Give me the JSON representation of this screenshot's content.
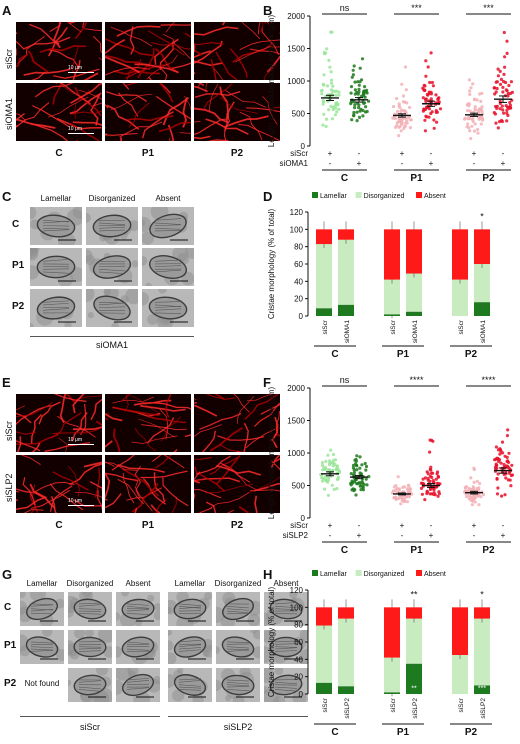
{
  "panels": {
    "A": {
      "label": "A",
      "rows": [
        "siScr",
        "siOMA1"
      ],
      "cols": [
        "C",
        "P1",
        "P2"
      ],
      "scalebar": "10 μm"
    },
    "B": {
      "label": "B"
    },
    "C": {
      "label": "C",
      "headers": [
        "Lamellar",
        "Disorganized",
        "Absent"
      ],
      "rows": [
        "C",
        "P1",
        "P2"
      ],
      "footer": "siOMA1"
    },
    "D": {
      "label": "D"
    },
    "E": {
      "label": "E",
      "rows": [
        "siScr",
        "siSLP2"
      ],
      "cols": [
        "C",
        "P1",
        "P2"
      ],
      "scalebar": "10 μm"
    },
    "F": {
      "label": "F"
    },
    "G": {
      "label": "G",
      "headers": [
        "Lamellar",
        "Disorganized",
        "Absent"
      ],
      "rows": [
        "C",
        "P1",
        "P2"
      ],
      "not_found": "Not found",
      "footers": [
        "siScr",
        "siSLP2"
      ]
    },
    "H": {
      "label": "H"
    }
  },
  "colors": {
    "scr": "#9ae59a",
    "scr_patient": "#f2b2b6",
    "kd_ctrl": "#1c7a1c",
    "kd_patient": "#e8102a",
    "lamellar": "#1e7a1e",
    "disorganized": "#c8ecc0",
    "absent": "#ff1a1a"
  },
  "chart_data": [
    {
      "id": "B",
      "type": "scatter",
      "ylabel": "Length of mitochondrial network (μm)",
      "ylim": [
        0,
        2000
      ],
      "yticks": [
        0,
        500,
        1000,
        1500,
        2000
      ],
      "row_labels": [
        "siScr",
        "siOMA1"
      ],
      "signs": [
        [
          "+",
          "-"
        ],
        [
          "-",
          "+"
        ],
        [
          "+",
          "-"
        ],
        [
          "-",
          "+"
        ],
        [
          "+",
          "-"
        ],
        [
          "-",
          "+"
        ]
      ],
      "groups": [
        "C",
        "P1",
        "P2"
      ],
      "significance": [
        "ns",
        "***",
        "***"
      ],
      "series": [
        {
          "name": "C siScr",
          "mean": 740,
          "sem": 40,
          "spread": [
            300,
            1900
          ]
        },
        {
          "name": "C siOMA1",
          "mean": 710,
          "sem": 35,
          "spread": [
            300,
            1550
          ]
        },
        {
          "name": "P1 siScr",
          "mean": 470,
          "sem": 25,
          "spread": [
            150,
            1400
          ]
        },
        {
          "name": "P1 siOMA1",
          "mean": 650,
          "sem": 40,
          "spread": [
            200,
            1750
          ]
        },
        {
          "name": "P2 siScr",
          "mean": 480,
          "sem": 25,
          "spread": [
            100,
            1650
          ]
        },
        {
          "name": "P2 siOMA1",
          "mean": 720,
          "sem": 50,
          "spread": [
            150,
            1850
          ]
        }
      ]
    },
    {
      "id": "D",
      "type": "bar",
      "stacked": true,
      "ylabel": "Cristae morphology (% of total)",
      "ylim": [
        0,
        120
      ],
      "yticks": [
        0,
        20,
        40,
        60,
        80,
        100,
        120
      ],
      "legend": [
        "Lamellar",
        "Disorganized",
        "Absent"
      ],
      "categories": [
        "siScr",
        "siOMA1",
        "siScr",
        "siOMA1",
        "siScr",
        "siOMA1"
      ],
      "groups": [
        "C",
        "P1",
        "P2"
      ],
      "series": [
        {
          "name": "Lamellar",
          "values": [
            9,
            13,
            2,
            5,
            0,
            16
          ]
        },
        {
          "name": "Disorganized",
          "values": [
            74,
            75,
            40,
            44,
            42,
            44
          ]
        },
        {
          "name": "Absent",
          "values": [
            17,
            12,
            58,
            51,
            58,
            40
          ]
        }
      ],
      "annotations": [
        "",
        "",
        "",
        "",
        "",
        "*"
      ]
    },
    {
      "id": "F",
      "type": "scatter",
      "ylabel": "Length of mitochondrial network (μm)",
      "ylim": [
        0,
        2000
      ],
      "yticks": [
        0,
        500,
        1000,
        1500,
        2000
      ],
      "row_labels": [
        "siScr",
        "siSLP2"
      ],
      "signs": [
        [
          "+",
          "-"
        ],
        [
          "-",
          "+"
        ],
        [
          "+",
          "-"
        ],
        [
          "-",
          "+"
        ],
        [
          "+",
          "-"
        ],
        [
          "-",
          "+"
        ]
      ],
      "groups": [
        "C",
        "P1",
        "P2"
      ],
      "significance": [
        "ns",
        "****",
        "****"
      ],
      "series": [
        {
          "name": "C siScr",
          "mean": 680,
          "sem": 30,
          "spread": [
            350,
            1100
          ]
        },
        {
          "name": "C siSLP2",
          "mean": 630,
          "sem": 25,
          "spread": [
            300,
            1000
          ]
        },
        {
          "name": "P1 siScr",
          "mean": 370,
          "sem": 15,
          "spread": [
            200,
            700
          ]
        },
        {
          "name": "P1 siSLP2",
          "mean": 500,
          "sem": 30,
          "spread": [
            200,
            1250
          ]
        },
        {
          "name": "P2 siScr",
          "mean": 390,
          "sem": 20,
          "spread": [
            200,
            800
          ]
        },
        {
          "name": "P2 siSLP2",
          "mean": 730,
          "sem": 40,
          "spread": [
            300,
            1550
          ]
        }
      ]
    },
    {
      "id": "H",
      "type": "bar",
      "stacked": true,
      "ylabel": "Cristae morphology (% of total)",
      "ylim": [
        0,
        120
      ],
      "yticks": [
        0,
        20,
        40,
        60,
        80,
        100,
        120
      ],
      "legend": [
        "Lamellar",
        "Disorganized",
        "Absent"
      ],
      "categories": [
        "siScr",
        "siSLP2",
        "siScr",
        "siSLP2",
        "siScr",
        "siSLP2"
      ],
      "groups": [
        "C",
        "P1",
        "P2"
      ],
      "series": [
        {
          "name": "Lamellar",
          "values": [
            13,
            9,
            2,
            35,
            0,
            10
          ]
        },
        {
          "name": "Disorganized",
          "values": [
            66,
            78,
            40,
            52,
            45,
            77
          ]
        },
        {
          "name": "Absent",
          "values": [
            21,
            13,
            58,
            13,
            55,
            13
          ]
        }
      ],
      "annotations": [
        "",
        "",
        "",
        "**",
        "",
        "*"
      ],
      "inner_annotations": [
        "",
        "",
        "",
        "**",
        "",
        "***"
      ]
    }
  ]
}
